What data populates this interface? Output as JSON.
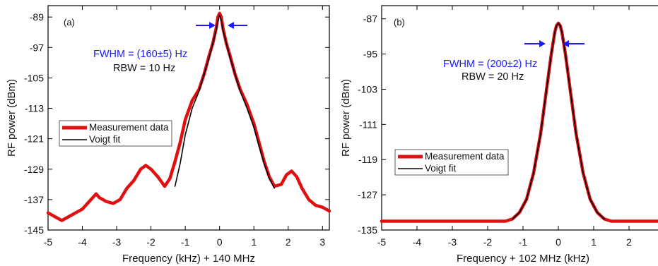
{
  "chart_data": [
    {
      "type": "line",
      "panel_label": "(a)",
      "xlabel": "Frequency (kHz) + 140 MHz",
      "ylabel": "RF power (dBm)",
      "xlim": [
        -5,
        3.2
      ],
      "ylim": [
        -145,
        -86
      ],
      "x_ticks": [
        -5,
        -4,
        -3,
        -2,
        -1,
        0,
        1,
        2,
        3
      ],
      "y_ticks": [
        -145,
        -137,
        -129,
        -121,
        -113,
        -105,
        -97,
        -89
      ],
      "annotations": {
        "fwhm": "FWHM = (160±5) Hz",
        "rbw": "RBW = 10 Hz"
      },
      "legend": {
        "position": "left",
        "entries": [
          "Measurement data",
          "Voigt fit"
        ]
      },
      "series": [
        {
          "name": "Measurement data",
          "color": "#e01010",
          "x": [
            -5,
            -4.8,
            -4.6,
            -4.4,
            -4.2,
            -4.0,
            -3.8,
            -3.6,
            -3.5,
            -3.3,
            -3.1,
            -2.9,
            -2.7,
            -2.5,
            -2.3,
            -2.15,
            -2.0,
            -1.8,
            -1.6,
            -1.45,
            -1.3,
            -1.15,
            -1.0,
            -0.8,
            -0.6,
            -0.45,
            -0.3,
            -0.2,
            -0.1,
            -0.05,
            0,
            0.05,
            0.1,
            0.2,
            0.3,
            0.45,
            0.6,
            0.8,
            1.0,
            1.15,
            1.3,
            1.45,
            1.6,
            1.8,
            1.95,
            2.1,
            2.25,
            2.4,
            2.6,
            2.8,
            3.0,
            3.2
          ],
          "y": [
            -140.5,
            -141.5,
            -142.5,
            -141.5,
            -140.5,
            -139.5,
            -137.5,
            -135.5,
            -136.5,
            -137.5,
            -138,
            -137,
            -134,
            -132,
            -129,
            -128,
            -129,
            -131,
            -133.5,
            -131.5,
            -127,
            -122,
            -116,
            -111,
            -108,
            -104,
            -99,
            -96,
            -92,
            -89,
            -88,
            -89,
            -92,
            -96,
            -99,
            -104,
            -108,
            -112,
            -117,
            -122,
            -127,
            -131,
            -133.5,
            -133,
            -130.5,
            -129.5,
            -131,
            -134,
            -137,
            -138.5,
            -139,
            -140
          ]
        },
        {
          "name": "Voigt fit",
          "color": "#000000",
          "x": [
            -1.3,
            -1.15,
            -1.0,
            -0.8,
            -0.6,
            -0.45,
            -0.3,
            -0.2,
            -0.1,
            -0.05,
            0,
            0.05,
            0.1,
            0.2,
            0.3,
            0.45,
            0.6,
            0.8,
            1.0,
            1.15,
            1.3,
            1.45,
            1.6
          ],
          "y": [
            -133.5,
            -127.5,
            -120,
            -113,
            -108.5,
            -104,
            -99.5,
            -96,
            -92.5,
            -90,
            -88.5,
            -90,
            -92.5,
            -96,
            -99.5,
            -104,
            -108.5,
            -113,
            -118,
            -123,
            -127.5,
            -131.5,
            -134
          ]
        }
      ]
    },
    {
      "type": "line",
      "panel_label": "(b)",
      "xlabel": "Frequency + 102 MHz (kHz)",
      "ylabel": "RF power (dBm)",
      "xlim": [
        -5,
        3
      ],
      "ylim": [
        -135,
        -84
      ],
      "x_ticks": [
        -5,
        -4,
        -3,
        -2,
        -1,
        0,
        1,
        2
      ],
      "y_ticks": [
        -135,
        -127,
        -119,
        -111,
        -103,
        -95,
        -87
      ],
      "annotations": {
        "fwhm": "FWHM = (200±2) Hz",
        "rbw": "RBW = 20 Hz"
      },
      "legend": {
        "position": "left",
        "entries": [
          "Measurement data",
          "Voigt fit"
        ]
      },
      "series": [
        {
          "name": "Measurement data",
          "color": "#e01010",
          "x": [
            -5,
            -4,
            -3,
            -2,
            -1.5,
            -1.3,
            -1.1,
            -0.9,
            -0.7,
            -0.5,
            -0.35,
            -0.2,
            -0.1,
            -0.05,
            0,
            0.05,
            0.1,
            0.2,
            0.35,
            0.5,
            0.7,
            0.9,
            1.1,
            1.3,
            1.5,
            2,
            3
          ],
          "y": [
            -133,
            -133,
            -133,
            -133,
            -133,
            -132.5,
            -131,
            -128,
            -122,
            -113,
            -104,
            -95,
            -90,
            -88.5,
            -88,
            -88.5,
            -90,
            -95,
            -104,
            -113,
            -122,
            -128,
            -131,
            -132.5,
            -133,
            -133,
            -133
          ]
        },
        {
          "name": "Voigt fit",
          "color": "#000000",
          "x": [
            -1.3,
            -1.1,
            -0.9,
            -0.7,
            -0.5,
            -0.35,
            -0.2,
            -0.1,
            -0.05,
            0,
            0.05,
            0.1,
            0.2,
            0.35,
            0.5,
            0.7,
            0.9,
            1.1,
            1.3
          ],
          "y": [
            -132.5,
            -131,
            -128,
            -122,
            -113,
            -104,
            -95,
            -90,
            -88.5,
            -88,
            -88.5,
            -90,
            -95,
            -104,
            -113,
            -122,
            -128,
            -131,
            -132.5
          ]
        }
      ]
    }
  ]
}
